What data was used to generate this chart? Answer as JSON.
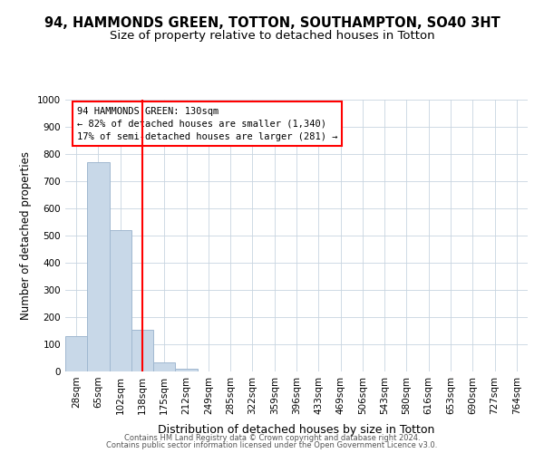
{
  "title": "94, HAMMONDS GREEN, TOTTON, SOUTHAMPTON, SO40 3HT",
  "subtitle": "Size of property relative to detached houses in Totton",
  "xlabel": "Distribution of detached houses by size in Totton",
  "ylabel": "Number of detached properties",
  "footer_line1": "Contains HM Land Registry data © Crown copyright and database right 2024.",
  "footer_line2": "Contains public sector information licensed under the Open Government Licence v3.0.",
  "categories": [
    "28sqm",
    "65sqm",
    "102sqm",
    "138sqm",
    "175sqm",
    "212sqm",
    "249sqm",
    "285sqm",
    "322sqm",
    "359sqm",
    "396sqm",
    "433sqm",
    "469sqm",
    "506sqm",
    "543sqm",
    "580sqm",
    "616sqm",
    "653sqm",
    "690sqm",
    "727sqm",
    "764sqm"
  ],
  "values": [
    130,
    770,
    520,
    155,
    35,
    10,
    0,
    0,
    0,
    0,
    0,
    0,
    0,
    0,
    0,
    0,
    0,
    0,
    0,
    0,
    0
  ],
  "bar_color": "#c8d8e8",
  "bar_edge_color": "#a0b8d0",
  "red_line_index": 3,
  "ylim": [
    0,
    1000
  ],
  "yticks": [
    0,
    100,
    200,
    300,
    400,
    500,
    600,
    700,
    800,
    900,
    1000
  ],
  "annotation_text": "94 HAMMONDS GREEN: 130sqm\n← 82% of detached houses are smaller (1,340)\n17% of semi-detached houses are larger (281) →",
  "bg_color": "#ffffff",
  "grid_color": "#c8d4e0",
  "title_fontsize": 10.5,
  "subtitle_fontsize": 9.5,
  "xlabel_fontsize": 9,
  "ylabel_fontsize": 8.5,
  "tick_fontsize": 7.5,
  "annotation_fontsize": 7.5,
  "footer_fontsize": 6.0
}
